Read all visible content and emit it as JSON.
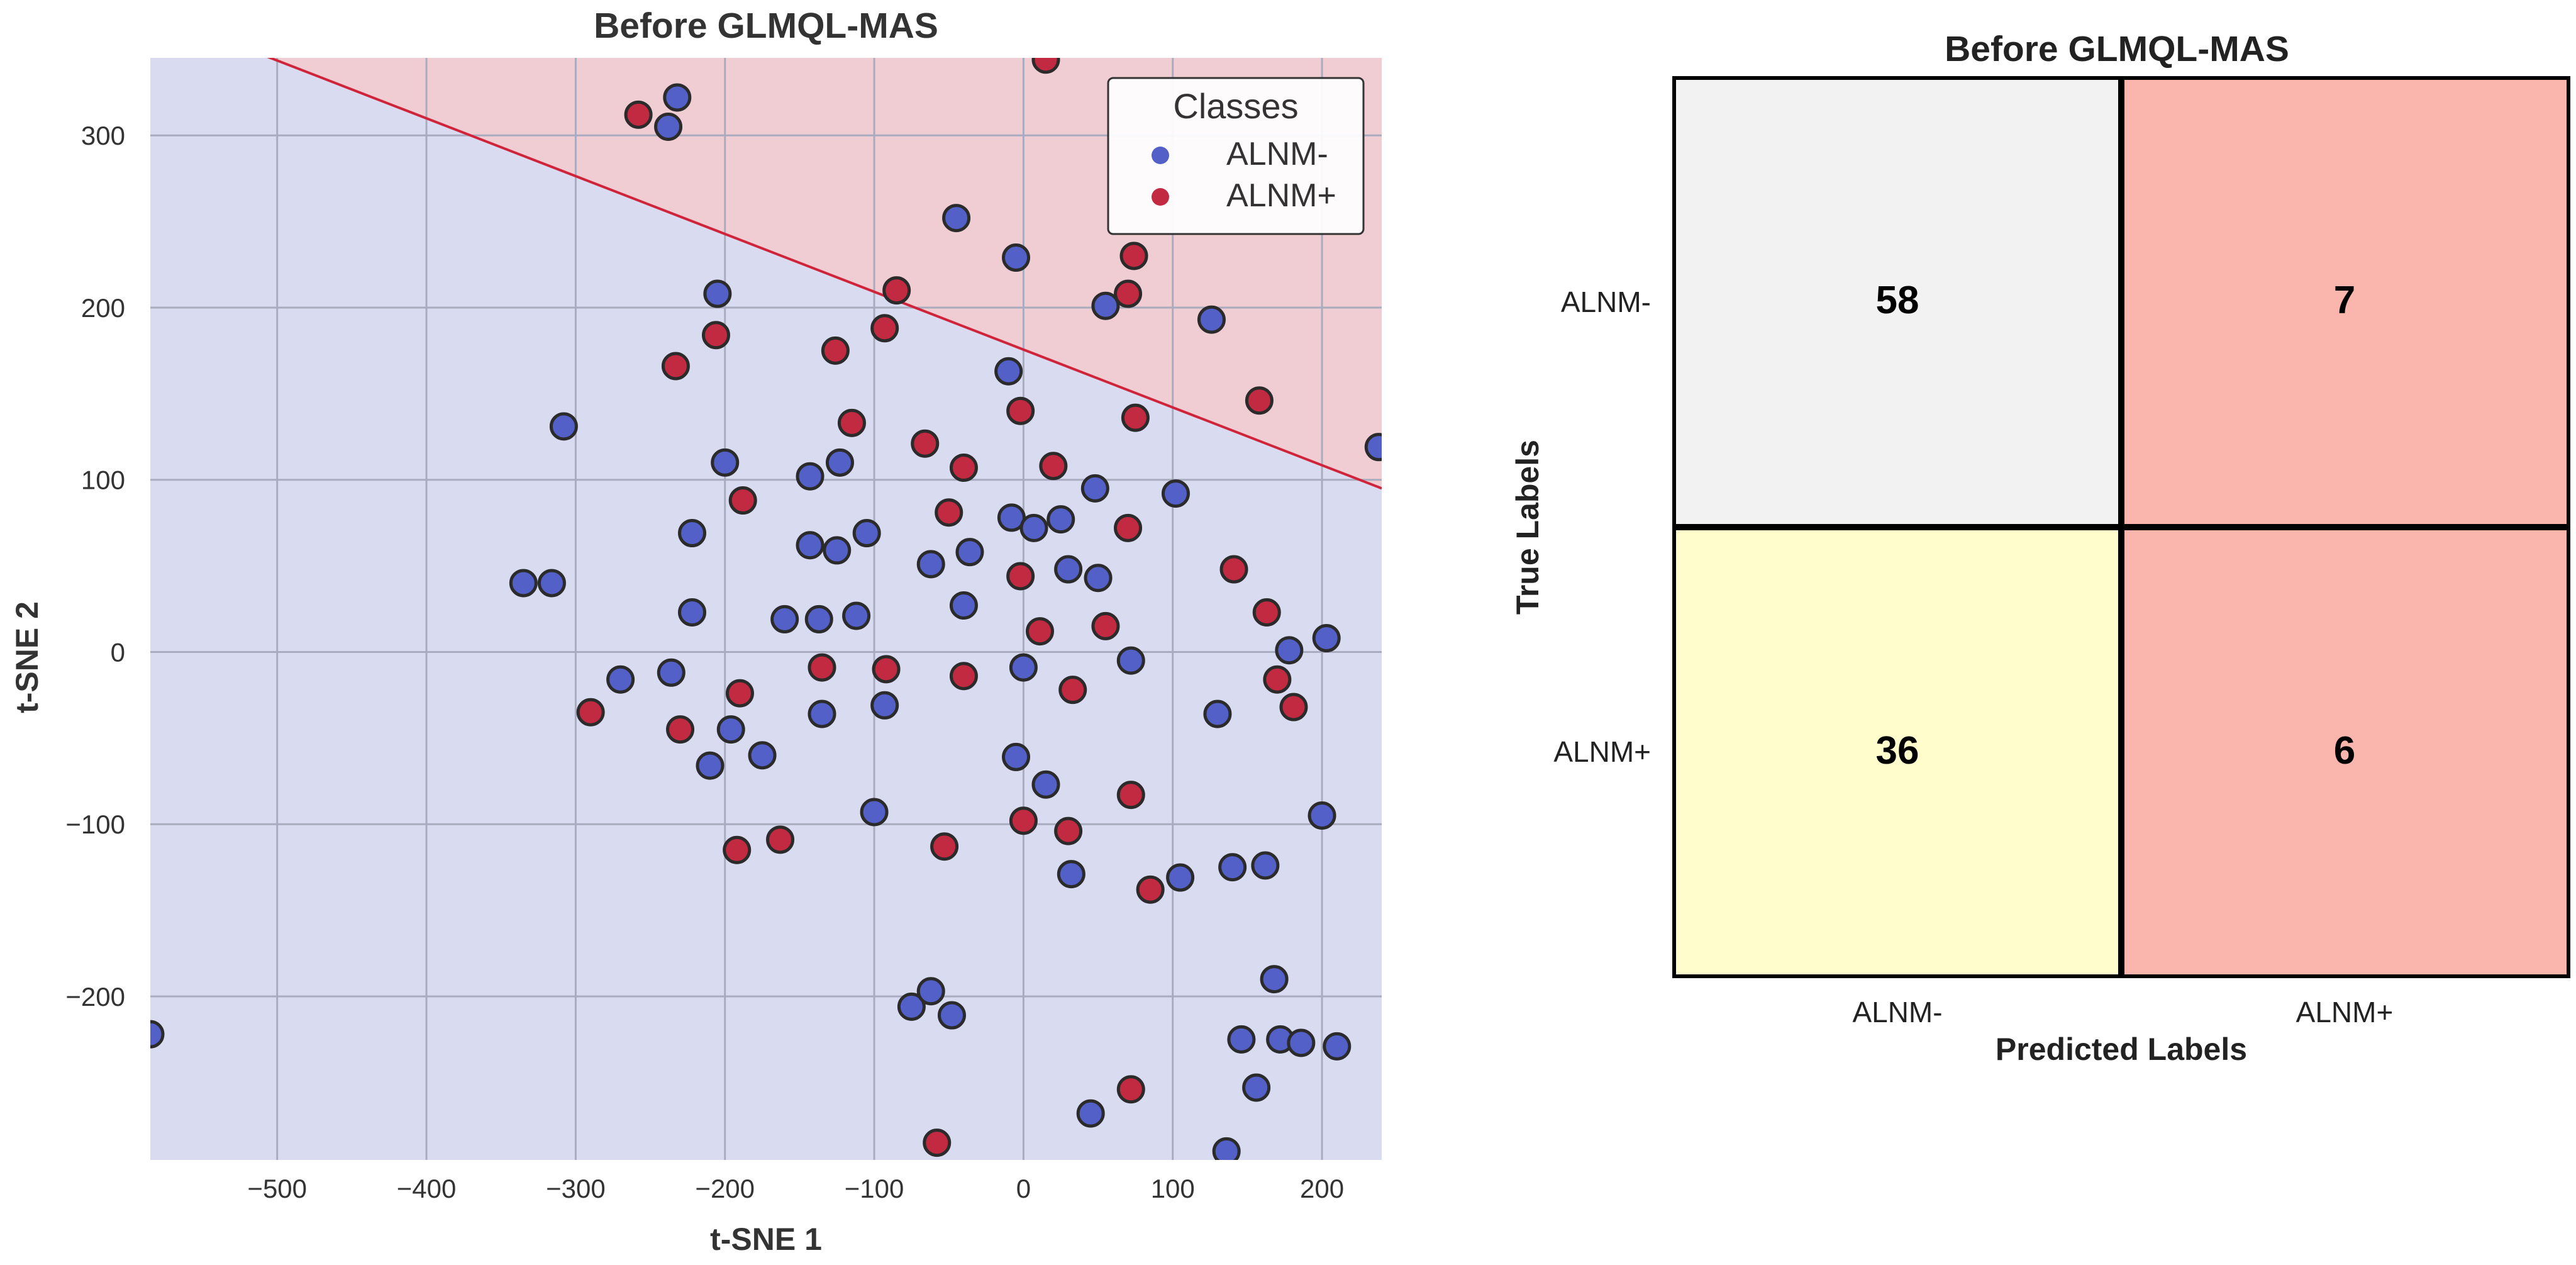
{
  "chart_data": [
    {
      "type": "scatter",
      "title": "Before GLMQL-MAS",
      "xlabel": "t-SNE 1",
      "ylabel": "t-SNE 2",
      "xlim": [
        -585,
        240
      ],
      "ylim": [
        -295,
        345
      ],
      "xticks": [
        -500,
        -400,
        -300,
        -200,
        -100,
        0,
        100,
        200
      ],
      "yticks": [
        -200,
        -100,
        0,
        100,
        200,
        300
      ],
      "xtick_labels": [
        "−500",
        "−400",
        "−300",
        "−200",
        "−100",
        "0",
        "100",
        "200"
      ],
      "ytick_labels": [
        "−200",
        "−100",
        "0",
        "100",
        "200",
        "300"
      ],
      "grid": true,
      "decision_boundary": {
        "x": [
          -585,
          240
        ],
        "y": [
          372,
          95
        ],
        "above_class": "ALNM+",
        "below_class": "ALNM-"
      },
      "legend": {
        "title": "Classes",
        "position": "top-right",
        "entries": [
          "ALNM-",
          "ALNM+"
        ]
      },
      "series": [
        {
          "name": "ALNM-",
          "color": "#5360C8",
          "region_color": "#D9DBF0",
          "points": [
            [
              -238,
              305
            ],
            [
              -232,
              322
            ],
            [
              -45,
              252
            ],
            [
              -5,
              229
            ],
            [
              55,
              201
            ],
            [
              126,
              193
            ],
            [
              238,
              119
            ],
            [
              -205,
              208
            ],
            [
              -308,
              131
            ],
            [
              -10,
              163
            ],
            [
              -200,
              110
            ],
            [
              -143,
              102
            ],
            [
              -123,
              110
            ],
            [
              -222,
              69
            ],
            [
              -105,
              69
            ],
            [
              48,
              95
            ],
            [
              102,
              92
            ],
            [
              -335,
              40
            ],
            [
              -316,
              40
            ],
            [
              -143,
              62
            ],
            [
              -125,
              59
            ],
            [
              -62,
              51
            ],
            [
              -36,
              58
            ],
            [
              -8,
              78
            ],
            [
              7,
              72
            ],
            [
              25,
              77
            ],
            [
              30,
              48
            ],
            [
              50,
              43
            ],
            [
              -222,
              23
            ],
            [
              -160,
              19
            ],
            [
              -137,
              19
            ],
            [
              -112,
              21
            ],
            [
              -40,
              27
            ],
            [
              -270,
              -16
            ],
            [
              -236,
              -12
            ],
            [
              0,
              -9
            ],
            [
              72,
              -5
            ],
            [
              178,
              1
            ],
            [
              203,
              8
            ],
            [
              -93,
              -31
            ],
            [
              -135,
              -36
            ],
            [
              -196,
              -45
            ],
            [
              -210,
              -66
            ],
            [
              -175,
              -60
            ],
            [
              -5,
              -61
            ],
            [
              15,
              -77
            ],
            [
              130,
              -36
            ],
            [
              -100,
              -93
            ],
            [
              32,
              -129
            ],
            [
              105,
              -131
            ],
            [
              140,
              -125
            ],
            [
              162,
              -124
            ],
            [
              200,
              -95
            ],
            [
              -75,
              -206
            ],
            [
              -62,
              -197
            ],
            [
              -48,
              -211
            ],
            [
              -585,
              -222
            ],
            [
              146,
              -225
            ],
            [
              168,
              -190
            ],
            [
              172,
              -225
            ],
            [
              186,
              -227
            ],
            [
              210,
              -229
            ],
            [
              156,
              -253
            ],
            [
              45,
              -268
            ],
            [
              136,
              -290
            ]
          ]
        },
        {
          "name": "ALNM+",
          "color": "#C12A41",
          "region_color": "#F0CDD3",
          "points": [
            [
              -258,
              312
            ],
            [
              15,
              344
            ],
            [
              -85,
              210
            ],
            [
              70,
              208
            ],
            [
              74,
              230
            ],
            [
              -206,
              184
            ],
            [
              -233,
              166
            ],
            [
              -126,
              175
            ],
            [
              -93,
              188
            ],
            [
              158,
              146
            ],
            [
              -115,
              133
            ],
            [
              -2,
              140
            ],
            [
              75,
              136
            ],
            [
              -66,
              121
            ],
            [
              -40,
              107
            ],
            [
              20,
              108
            ],
            [
              -188,
              88
            ],
            [
              -50,
              81
            ],
            [
              70,
              72
            ],
            [
              -2,
              44
            ],
            [
              141,
              48
            ],
            [
              11,
              12
            ],
            [
              55,
              15
            ],
            [
              163,
              23
            ],
            [
              -290,
              -35
            ],
            [
              -190,
              -24
            ],
            [
              -135,
              -9
            ],
            [
              -92,
              -10
            ],
            [
              -40,
              -14
            ],
            [
              170,
              -16
            ],
            [
              181,
              -32
            ],
            [
              33,
              -22
            ],
            [
              -230,
              -45
            ],
            [
              -192,
              -115
            ],
            [
              -163,
              -109
            ],
            [
              -53,
              -113
            ],
            [
              0,
              -98
            ],
            [
              30,
              -104
            ],
            [
              72,
              -83
            ],
            [
              85,
              -138
            ],
            [
              72,
              -254
            ],
            [
              -58,
              -285
            ]
          ]
        }
      ]
    },
    {
      "type": "heatmap",
      "title": "Before GLMQL-MAS",
      "xlabel": "Predicted Labels",
      "ylabel": "True Labels",
      "row_labels": [
        "ALNM-",
        "ALNM+"
      ],
      "col_labels": [
        "ALNM-",
        "ALNM+"
      ],
      "values": [
        [
          58,
          7
        ],
        [
          36,
          6
        ]
      ],
      "cell_colors": [
        [
          "#F2F2F2",
          "#FAB5AD"
        ],
        [
          "#FEFDCB",
          "#FAB5AD"
        ]
      ]
    }
  ]
}
